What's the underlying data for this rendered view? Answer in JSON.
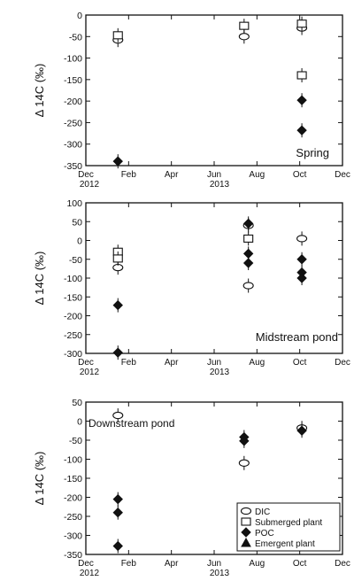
{
  "chart_data": [
    {
      "type": "scatter",
      "panel": "spring",
      "annotation": "Spring",
      "ylabel": "Δ 14C (‰)",
      "ylim": [
        -350,
        0
      ],
      "yticks": [
        0,
        -50,
        -100,
        -150,
        -200,
        -250,
        -300,
        -350
      ],
      "xticks": [
        "Dec",
        "Feb",
        "Apr",
        "Jun",
        "Aug",
        "Oct",
        "Dec"
      ],
      "year_labels": [
        "2012",
        "2013"
      ],
      "series": [
        {
          "name": "DIC",
          "marker": "circle",
          "points": [
            {
              "x": 1.5,
              "y": -58
            },
            {
              "x": 7.4,
              "y": -50
            },
            {
              "x": 10.1,
              "y": -30
            }
          ]
        },
        {
          "name": "Submerged plant",
          "marker": "square",
          "points": [
            {
              "x": 1.5,
              "y": -47
            },
            {
              "x": 7.4,
              "y": -25
            },
            {
              "x": 10.1,
              "y": -20
            },
            {
              "x": 10.1,
              "y": -140
            }
          ]
        },
        {
          "name": "POC",
          "marker": "diamond",
          "points": [
            {
              "x": 1.5,
              "y": -340
            },
            {
              "x": 10.1,
              "y": -198
            },
            {
              "x": 10.1,
              "y": -268
            }
          ]
        }
      ]
    },
    {
      "type": "scatter",
      "panel": "midstream",
      "annotation": "Midstream pond",
      "ylabel": "Δ 14C (‰)",
      "ylim": [
        -300,
        100
      ],
      "yticks": [
        100,
        50,
        0,
        -50,
        -100,
        -150,
        -200,
        -250,
        -300
      ],
      "xticks": [
        "Dec",
        "Feb",
        "Apr",
        "Jun",
        "Aug",
        "Oct",
        "Dec"
      ],
      "year_labels": [
        "2012",
        "2013"
      ],
      "series": [
        {
          "name": "DIC",
          "marker": "circle",
          "points": [
            {
              "x": 1.5,
              "y": -72
            },
            {
              "x": 7.6,
              "y": 40
            },
            {
              "x": 7.6,
              "y": -120
            },
            {
              "x": 10.1,
              "y": 5
            }
          ]
        },
        {
          "name": "Submerged plant",
          "marker": "square",
          "points": [
            {
              "x": 1.5,
              "y": -30
            },
            {
              "x": 1.5,
              "y": -48
            },
            {
              "x": 7.6,
              "y": 5
            }
          ]
        },
        {
          "name": "POC",
          "marker": "diamond",
          "points": [
            {
              "x": 1.5,
              "y": -172
            },
            {
              "x": 1.5,
              "y": -298
            },
            {
              "x": 7.6,
              "y": 45
            },
            {
              "x": 7.6,
              "y": -35
            },
            {
              "x": 7.6,
              "y": -60
            },
            {
              "x": 10.1,
              "y": -50
            },
            {
              "x": 10.1,
              "y": -85
            },
            {
              "x": 10.1,
              "y": -100
            }
          ]
        }
      ]
    },
    {
      "type": "scatter",
      "panel": "downstream",
      "annotation": "Downstream pond",
      "ylabel": "Δ 14C (‰)",
      "ylim": [
        -350,
        50
      ],
      "yticks": [
        50,
        0,
        -50,
        -100,
        -150,
        -200,
        -250,
        -300,
        -350
      ],
      "xticks": [
        "Dec",
        "Feb",
        "Apr",
        "Jun",
        "Aug",
        "Oct",
        "Dec"
      ],
      "year_labels": [
        "2012",
        "2013"
      ],
      "series": [
        {
          "name": "DIC",
          "marker": "circle",
          "points": [
            {
              "x": 1.5,
              "y": 15
            },
            {
              "x": 7.4,
              "y": -110
            },
            {
              "x": 10.1,
              "y": -18
            }
          ]
        },
        {
          "name": "Submerged plant",
          "marker": "square",
          "points": []
        },
        {
          "name": "POC",
          "marker": "diamond",
          "points": [
            {
              "x": 1.5,
              "y": -205
            },
            {
              "x": 1.5,
              "y": -240
            },
            {
              "x": 1.5,
              "y": -328
            },
            {
              "x": 7.4,
              "y": -42
            },
            {
              "x": 7.4,
              "y": -52
            },
            {
              "x": 10.1,
              "y": -25
            }
          ]
        },
        {
          "name": "Emergent plant",
          "marker": "triangle",
          "points": []
        }
      ],
      "legend": {
        "position": "bottom-right",
        "entries": [
          {
            "label": "DIC",
            "marker": "circle"
          },
          {
            "label": "Submerged plant",
            "marker": "square"
          },
          {
            "label": "POC",
            "marker": "diamond"
          },
          {
            "label": "Emergent plant",
            "marker": "triangle"
          }
        ]
      }
    }
  ]
}
